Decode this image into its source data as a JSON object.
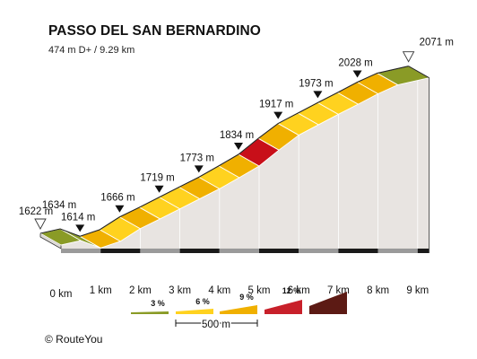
{
  "title": "PASSO DEL SAN BERNARDINO",
  "subtitle": "474 m D+ / 9.29 km",
  "credit": "© RouteYou",
  "chart_data": {
    "type": "area",
    "title": "PASSO DEL SAN BERNARDINO",
    "subtitle": "474 m D+ / 9.29 km",
    "xlabel": "",
    "ylabel": "",
    "x_unit": "km",
    "x_ticks": [
      0,
      1,
      2,
      3,
      4,
      5,
      6,
      7,
      8,
      9
    ],
    "x_tick_labels": [
      "0 km",
      "1 km",
      "2 km",
      "3 km",
      "4 km",
      "5 km",
      "6 km",
      "7 km",
      "8 km",
      "9 km"
    ],
    "xlim": [
      0,
      9.29
    ],
    "points": [
      {
        "x": 0,
        "y": 1622
      },
      {
        "x": 0.5,
        "y": 1634
      },
      {
        "x": 1.0,
        "y": 1614
      },
      {
        "x": 1.5,
        "y": 1632
      },
      {
        "x": 2.0,
        "y": 1666
      },
      {
        "x": 2.5,
        "y": 1692
      },
      {
        "x": 3.0,
        "y": 1719
      },
      {
        "x": 3.5,
        "y": 1746
      },
      {
        "x": 4.0,
        "y": 1773
      },
      {
        "x": 4.5,
        "y": 1803
      },
      {
        "x": 5.0,
        "y": 1834
      },
      {
        "x": 5.5,
        "y": 1877
      },
      {
        "x": 6.0,
        "y": 1917
      },
      {
        "x": 6.5,
        "y": 1945
      },
      {
        "x": 7.0,
        "y": 1973
      },
      {
        "x": 7.5,
        "y": 2000
      },
      {
        "x": 8.0,
        "y": 2028
      },
      {
        "x": 8.5,
        "y": 2052
      },
      {
        "x": 9.29,
        "y": 2071
      }
    ],
    "segment_colors": [
      "#8a9b26",
      "#8a9b26",
      "#f0b000",
      "#ffd21f",
      "#f0b000",
      "#ffd21f",
      "#ffd21f",
      "#f0b000",
      "#ffd21f",
      "#f0b000",
      "#c80f19",
      "#f0b000",
      "#ffd21f",
      "#ffd21f",
      "#ffd21f",
      "#f0b000",
      "#f0b000",
      "#8a9b26"
    ],
    "elevation_labels": [
      {
        "text": "1622 m",
        "x": 0,
        "marker": "start"
      },
      {
        "text": "1634 m",
        "x": 0.5,
        "marker": "none"
      },
      {
        "text": "1614 m",
        "x": 1.0,
        "marker": "point"
      },
      {
        "text": "1666 m",
        "x": 2.0,
        "marker": "point"
      },
      {
        "text": "1719 m",
        "x": 3.0,
        "marker": "point"
      },
      {
        "text": "1773 m",
        "x": 4.0,
        "marker": "point"
      },
      {
        "text": "1834 m",
        "x": 5.0,
        "marker": "point"
      },
      {
        "text": "1917 m",
        "x": 6.0,
        "marker": "point"
      },
      {
        "text": "1973 m",
        "x": 7.0,
        "marker": "point"
      },
      {
        "text": "2028 m",
        "x": 8.0,
        "marker": "point"
      },
      {
        "text": "2071 m",
        "x": 9.29,
        "marker": "end"
      }
    ],
    "legend": {
      "placement": "bottom",
      "items": [
        {
          "label": "3 %",
          "color": "#8a9b26"
        },
        {
          "label": "6 %",
          "color": "#ffd21f"
        },
        {
          "label": "9 %",
          "color": "#f0b000"
        },
        {
          "label": "12 %",
          "color": "#c8202a"
        },
        {
          "label": "",
          "color": "#5c1a14"
        }
      ],
      "scale_label": "500 m"
    },
    "grid": false
  }
}
